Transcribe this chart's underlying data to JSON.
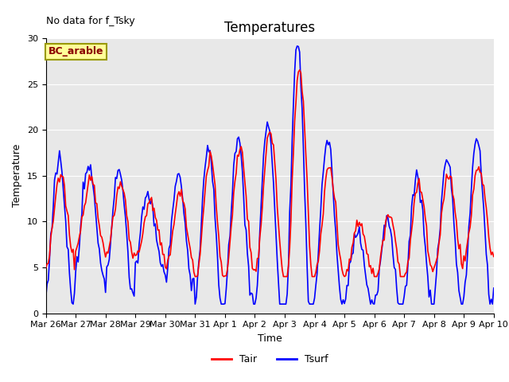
{
  "title": "Temperatures",
  "xlabel": "Time",
  "ylabel": "Temperature",
  "annotation": "No data for f_Tsky",
  "box_label": "BC_arable",
  "ylim": [
    0,
    30
  ],
  "tair_color": "#FF0000",
  "tsurf_color": "#0000FF",
  "bg_color": "#E8E8E8",
  "legend_labels": [
    "Tair",
    "Tsurf"
  ],
  "title_fontsize": 12,
  "label_fontsize": 9,
  "tick_fontsize": 8,
  "line_width": 1.2,
  "tick_labels": [
    "Mar 26",
    "Mar 27",
    "Mar 28",
    "Mar 29",
    "Mar 30",
    "Mar 31",
    "Apr 1",
    "Apr 2",
    "Apr 3",
    "Apr 4",
    "Apr 5",
    "Apr 6",
    "Apr 7",
    "Apr 8",
    "Apr 9",
    "Apr 10"
  ]
}
